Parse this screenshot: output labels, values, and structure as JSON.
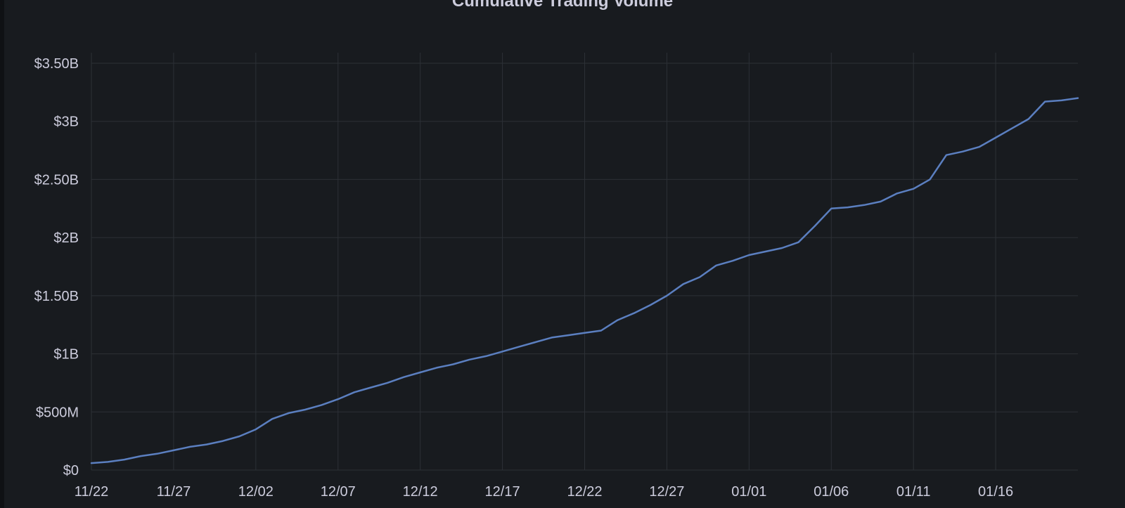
{
  "chart_data": {
    "type": "line",
    "title": "Cumulative Trading Volume",
    "xlabel": "",
    "ylabel": "",
    "x_tick_labels": [
      "11/22",
      "11/27",
      "12/02",
      "12/07",
      "12/12",
      "12/17",
      "12/22",
      "12/27",
      "01/01",
      "01/06",
      "01/11",
      "01/16"
    ],
    "y_tick_labels": [
      "$0",
      "$500M",
      "$1B",
      "$1.50B",
      "$2B",
      "$2.50B",
      "$3B",
      "$3.50B"
    ],
    "y_tick_values": [
      0,
      500000000,
      1000000000,
      1500000000,
      2000000000,
      2500000000,
      3000000000,
      3500000000
    ],
    "ylim": [
      0,
      3500000000
    ],
    "xlim": [
      "2021-11-22",
      "2022-01-21"
    ],
    "grid": true,
    "legend": "none",
    "series": [
      {
        "color": "#5b7fc0",
        "x": [
          "2021-11-22",
          "2021-11-23",
          "2021-11-24",
          "2021-11-25",
          "2021-11-26",
          "2021-11-27",
          "2021-11-28",
          "2021-11-29",
          "2021-11-30",
          "2021-12-01",
          "2021-12-02",
          "2021-12-03",
          "2021-12-04",
          "2021-12-05",
          "2021-12-06",
          "2021-12-07",
          "2021-12-08",
          "2021-12-09",
          "2021-12-10",
          "2021-12-11",
          "2021-12-12",
          "2021-12-13",
          "2021-12-14",
          "2021-12-15",
          "2021-12-16",
          "2021-12-17",
          "2021-12-18",
          "2021-12-19",
          "2021-12-20",
          "2021-12-21",
          "2021-12-22",
          "2021-12-23",
          "2021-12-24",
          "2021-12-25",
          "2021-12-26",
          "2021-12-27",
          "2021-12-28",
          "2021-12-29",
          "2021-12-30",
          "2021-12-31",
          "2022-01-01",
          "2022-01-02",
          "2022-01-03",
          "2022-01-04",
          "2022-01-05",
          "2022-01-06",
          "2022-01-07",
          "2022-01-08",
          "2022-01-09",
          "2022-01-10",
          "2022-01-11",
          "2022-01-12",
          "2022-01-13",
          "2022-01-14",
          "2022-01-15",
          "2022-01-16",
          "2022-01-17",
          "2022-01-18",
          "2022-01-19",
          "2022-01-20",
          "2022-01-21"
        ],
        "values": [
          60000000,
          70000000,
          90000000,
          120000000,
          140000000,
          170000000,
          200000000,
          220000000,
          250000000,
          290000000,
          350000000,
          440000000,
          490000000,
          520000000,
          560000000,
          610000000,
          670000000,
          710000000,
          750000000,
          800000000,
          840000000,
          880000000,
          910000000,
          950000000,
          980000000,
          1020000000,
          1060000000,
          1100000000,
          1140000000,
          1160000000,
          1180000000,
          1200000000,
          1290000000,
          1350000000,
          1420000000,
          1500000000,
          1600000000,
          1660000000,
          1760000000,
          1800000000,
          1850000000,
          1880000000,
          1910000000,
          1960000000,
          2100000000,
          2250000000,
          2260000000,
          2280000000,
          2310000000,
          2380000000,
          2420000000,
          2500000000,
          2710000000,
          2740000000,
          2780000000,
          2860000000,
          2940000000,
          3020000000,
          3170000000,
          3180000000,
          3200000000
        ]
      }
    ]
  }
}
